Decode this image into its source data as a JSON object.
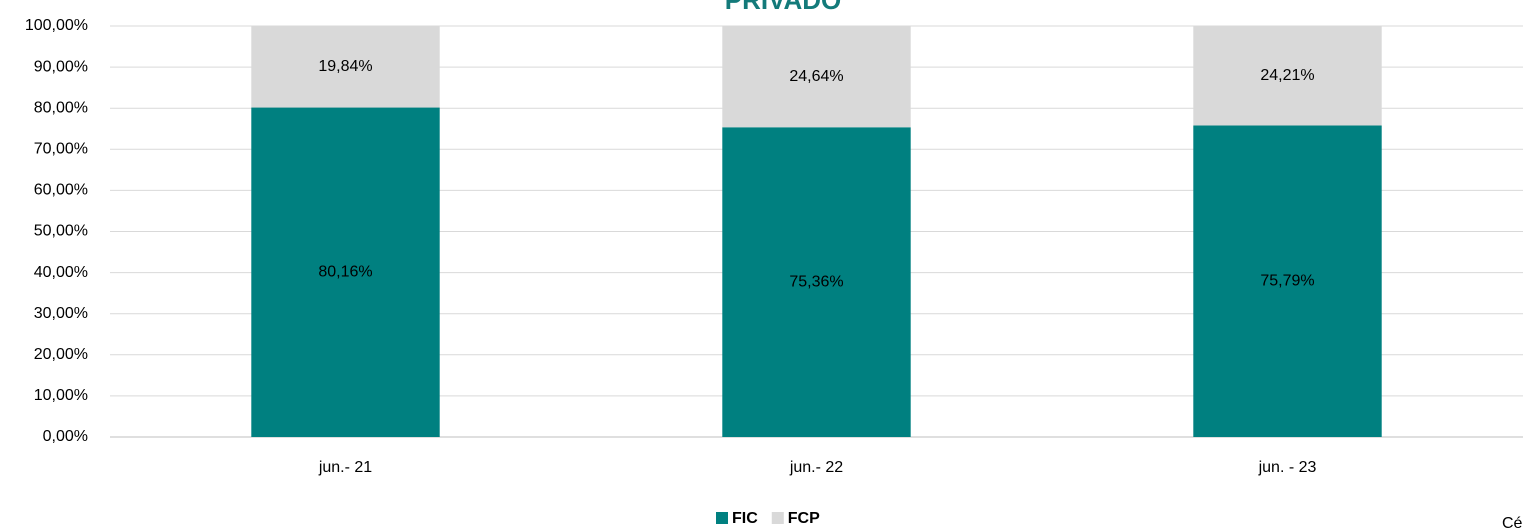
{
  "chart_data": {
    "type": "stacked_bar",
    "title": "PRIVADO",
    "categories": [
      "jun.- 21",
      "jun.- 22",
      "jun. - 23"
    ],
    "series": [
      {
        "name": "FIC",
        "color": "#008080",
        "values": [
          80.16,
          75.36,
          75.79
        ],
        "value_labels": [
          "80,16%",
          "75,36%",
          "75,79%"
        ]
      },
      {
        "name": "FCP",
        "color": "#d9d9d9",
        "values": [
          19.84,
          24.64,
          24.21
        ],
        "value_labels": [
          "19,84%",
          "24,64%",
          "24,21%"
        ]
      }
    ],
    "ylim": [
      0,
      100
    ],
    "yticks": [
      {
        "value": 0,
        "label": "0,00%"
      },
      {
        "value": 10,
        "label": "10,00%"
      },
      {
        "value": 20,
        "label": "20,00%"
      },
      {
        "value": 30,
        "label": "30,00%"
      },
      {
        "value": 40,
        "label": "40,00%"
      },
      {
        "value": 50,
        "label": "50,00%"
      },
      {
        "value": 60,
        "label": "60,00%"
      },
      {
        "value": 70,
        "label": "70,00%"
      },
      {
        "value": 80,
        "label": "80,00%"
      },
      {
        "value": 90,
        "label": "90,00%"
      },
      {
        "value": 100,
        "label": "100,00%"
      }
    ],
    "grid": true,
    "legend": "bottom",
    "annotation": "Cé"
  }
}
